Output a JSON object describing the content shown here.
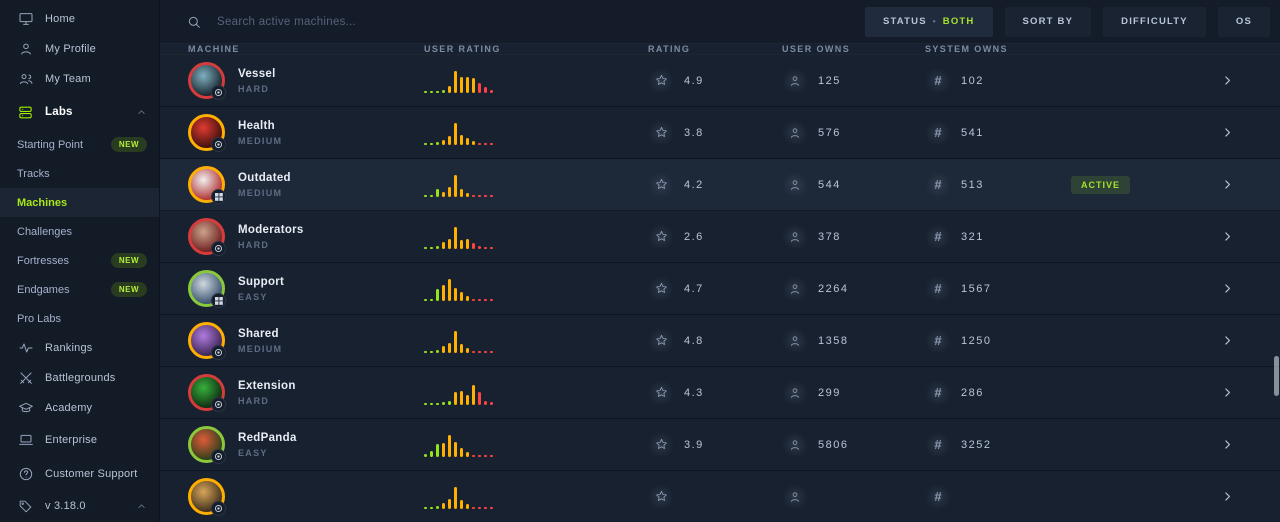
{
  "colors": {
    "accent_green": "#9fef00",
    "bar_colors": {
      "g": "#96e617",
      "y": "#ffb000",
      "r": "#ff4242"
    },
    "ring": {
      "EASY": "#8bc93c",
      "MEDIUM": "#ffaf00",
      "HARD": "#d63c3c"
    }
  },
  "sidebar": {
    "items": [
      {
        "label": "Home",
        "icon": "monitor-icon"
      },
      {
        "label": "My Profile",
        "icon": "user-icon"
      },
      {
        "label": "My Team",
        "icon": "users-icon"
      },
      {
        "label": "Labs",
        "icon": "labs-icon"
      },
      {
        "label": "Starting Point",
        "badge": "NEW"
      },
      {
        "label": "Tracks"
      },
      {
        "label": "Machines",
        "active": true
      },
      {
        "label": "Challenges"
      },
      {
        "label": "Fortresses",
        "badge": "NEW"
      },
      {
        "label": "Endgames",
        "badge": "NEW"
      },
      {
        "label": "Pro Labs"
      },
      {
        "label": "Rankings",
        "icon": "activity-icon"
      },
      {
        "label": "Battlegrounds",
        "icon": "swords-icon"
      },
      {
        "label": "Academy",
        "icon": "academy-icon"
      },
      {
        "label": "Enterprise",
        "icon": "laptop-icon"
      },
      {
        "label": "Customer Support",
        "icon": "help-icon"
      },
      {
        "label": "v 3.18.0",
        "icon": "tag-icon"
      }
    ]
  },
  "header": {
    "search": {
      "placeholder": "Search active machines..."
    },
    "filters": {
      "status_label": "STATUS",
      "status_separator": "•",
      "status_value": "BOTH",
      "sort_by": "SORT BY",
      "difficulty": "DIFFICULTY",
      "os": "OS"
    }
  },
  "table": {
    "headers": [
      "MACHINE",
      "USER RATING",
      "RATING",
      "USER OWNS",
      "SYSTEM OWNS"
    ],
    "rows": [
      {
        "name": "Vessel",
        "difficulty": "HARD",
        "rating": "4.9",
        "user_owns": "125",
        "system_owns": "102",
        "active": false,
        "os": "linux",
        "avatar": {
          "from": "#7fb0c0",
          "to": "#15222b"
        },
        "bars": {
          "h": [
            2,
            2,
            2,
            3,
            7,
            22,
            16,
            16,
            15,
            10,
            6,
            3
          ],
          "c": [
            "g",
            "g",
            "g",
            "g",
            "y",
            "y",
            "y",
            "y",
            "y",
            "r",
            "r",
            "r"
          ]
        }
      },
      {
        "name": "Health",
        "difficulty": "MEDIUM",
        "rating": "3.8",
        "user_owns": "576",
        "system_owns": "541",
        "active": false,
        "os": "linux",
        "avatar": {
          "from": "#e03a30",
          "to": "#3a0f0c"
        },
        "bars": {
          "h": [
            2,
            2,
            3,
            5,
            9,
            22,
            10,
            7,
            4,
            2,
            2,
            2
          ],
          "c": [
            "g",
            "g",
            "g",
            "y",
            "y",
            "y",
            "y",
            "y",
            "y",
            "r",
            "r",
            "r"
          ]
        }
      },
      {
        "name": "Outdated",
        "difficulty": "MEDIUM",
        "rating": "4.2",
        "user_owns": "544",
        "system_owns": "513",
        "active": true,
        "os": "windows",
        "avatar": {
          "from": "#f0f0f0",
          "to": "#b03030"
        },
        "bars": {
          "h": [
            2,
            2,
            8,
            5,
            10,
            22,
            8,
            4,
            2,
            2,
            2,
            2
          ],
          "c": [
            "g",
            "g",
            "g",
            "y",
            "y",
            "y",
            "y",
            "y",
            "r",
            "r",
            "r",
            "r"
          ]
        }
      },
      {
        "name": "Moderators",
        "difficulty": "HARD",
        "rating": "2.6",
        "user_owns": "378",
        "system_owns": "321",
        "active": false,
        "os": "linux",
        "avatar": {
          "from": "#caa28a",
          "to": "#6e1f1f"
        },
        "bars": {
          "h": [
            2,
            2,
            3,
            7,
            10,
            22,
            9,
            10,
            6,
            3,
            2,
            2
          ],
          "c": [
            "g",
            "g",
            "g",
            "y",
            "y",
            "y",
            "y",
            "y",
            "r",
            "r",
            "r",
            "r"
          ]
        }
      },
      {
        "name": "Support",
        "difficulty": "EASY",
        "rating": "4.7",
        "user_owns": "2264",
        "system_owns": "1567",
        "active": false,
        "os": "windows",
        "avatar": {
          "from": "#cfd8e0",
          "to": "#35506b"
        },
        "bars": {
          "h": [
            2,
            2,
            12,
            16,
            22,
            13,
            9,
            5,
            2,
            2,
            2,
            2
          ],
          "c": [
            "g",
            "g",
            "g",
            "y",
            "y",
            "y",
            "y",
            "y",
            "r",
            "r",
            "r",
            "r"
          ]
        }
      },
      {
        "name": "Shared",
        "difficulty": "MEDIUM",
        "rating": "4.8",
        "user_owns": "1358",
        "system_owns": "1250",
        "active": false,
        "os": "linux",
        "avatar": {
          "from": "#b07be0",
          "to": "#3a2450"
        },
        "bars": {
          "h": [
            2,
            2,
            3,
            7,
            10,
            22,
            9,
            5,
            2,
            2,
            2,
            2
          ],
          "c": [
            "g",
            "g",
            "g",
            "y",
            "y",
            "y",
            "y",
            "y",
            "r",
            "r",
            "r",
            "r"
          ]
        }
      },
      {
        "name": "Extension",
        "difficulty": "HARD",
        "rating": "4.3",
        "user_owns": "299",
        "system_owns": "286",
        "active": false,
        "os": "linux",
        "avatar": {
          "from": "#35b03a",
          "to": "#0f2a12"
        },
        "bars": {
          "h": [
            2,
            2,
            2,
            3,
            4,
            13,
            14,
            10,
            20,
            13,
            4,
            3
          ],
          "c": [
            "g",
            "g",
            "g",
            "g",
            "g",
            "y",
            "y",
            "y",
            "y",
            "r",
            "r",
            "r"
          ]
        }
      },
      {
        "name": "RedPanda",
        "difficulty": "EASY",
        "rating": "3.9",
        "user_owns": "5806",
        "system_owns": "3252",
        "active": false,
        "os": "linux",
        "avatar": {
          "from": "#e05a3a",
          "to": "#274018"
        },
        "bars": {
          "h": [
            3,
            6,
            13,
            14,
            22,
            15,
            9,
            5,
            2,
            2,
            2,
            2
          ],
          "c": [
            "g",
            "g",
            "g",
            "y",
            "y",
            "y",
            "y",
            "y",
            "r",
            "r",
            "r",
            "r"
          ]
        }
      },
      {
        "name": "",
        "difficulty": "MEDIUM",
        "rating": "",
        "user_owns": "",
        "system_owns": "",
        "active": false,
        "os": "linux",
        "partial": true,
        "avatar": {
          "from": "#d9a55a",
          "to": "#3a2d1a"
        },
        "bars": {
          "h": [
            2,
            2,
            3,
            6,
            10,
            22,
            9,
            5,
            2,
            2,
            2,
            2
          ],
          "c": [
            "g",
            "g",
            "g",
            "y",
            "y",
            "y",
            "y",
            "y",
            "r",
            "r",
            "r",
            "r"
          ]
        }
      }
    ],
    "active_badge_label": "ACTIVE"
  }
}
